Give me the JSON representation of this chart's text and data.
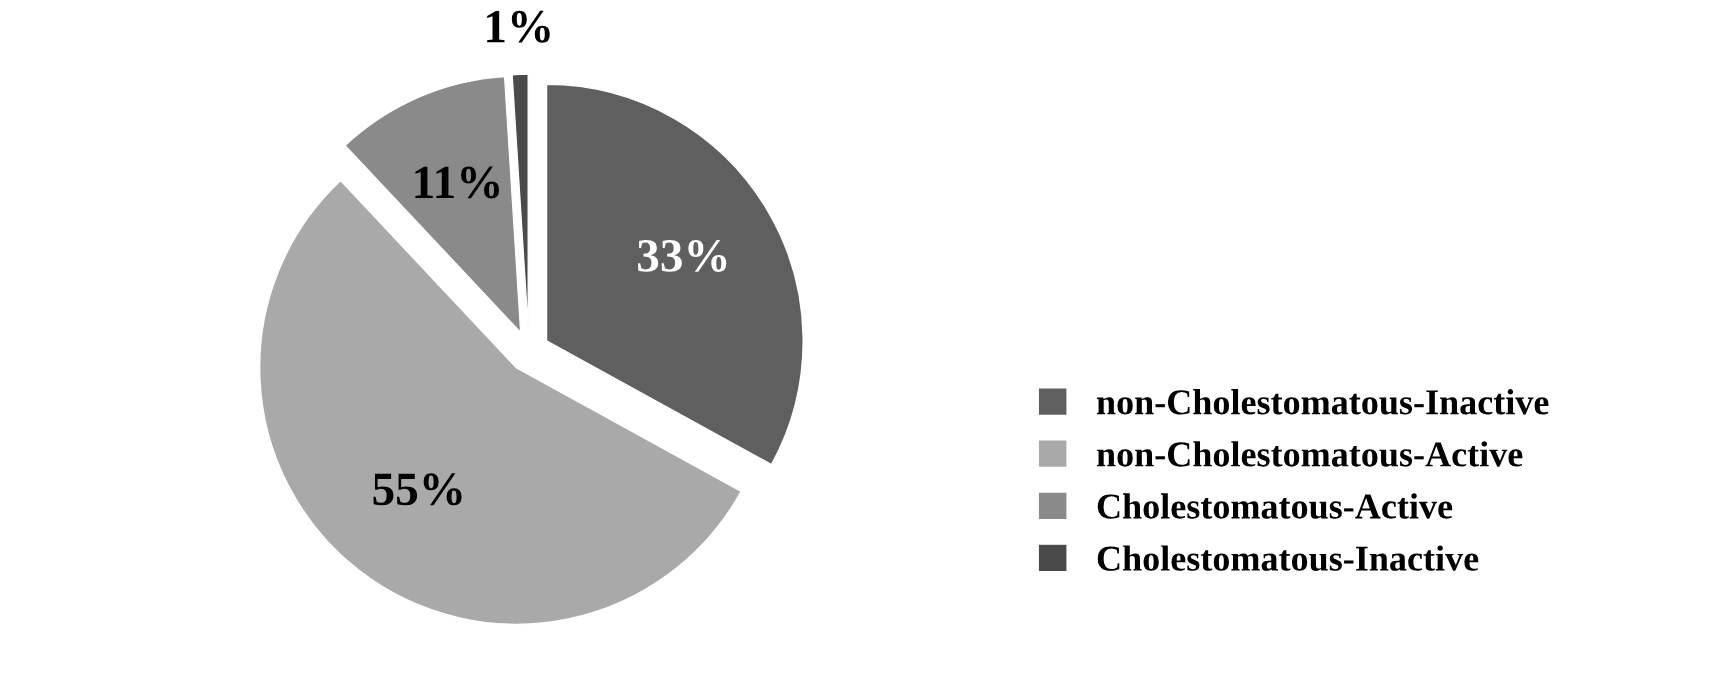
{
  "chart_data": {
    "type": "pie",
    "categories": [
      "non-Cholestomatous-Inactive",
      "non-Cholestomatous-Active",
      "Cholestomatous-Active",
      "Cholestomatous-Inactive"
    ],
    "values": [
      33,
      55,
      11,
      1
    ],
    "colors": [
      "#5f5f5f",
      "#a9a9a9",
      "#8a8a8a",
      "#4a4a4a"
    ],
    "value_labels": [
      "33%",
      "55%",
      "11%",
      "1%"
    ],
    "legend": "right"
  }
}
